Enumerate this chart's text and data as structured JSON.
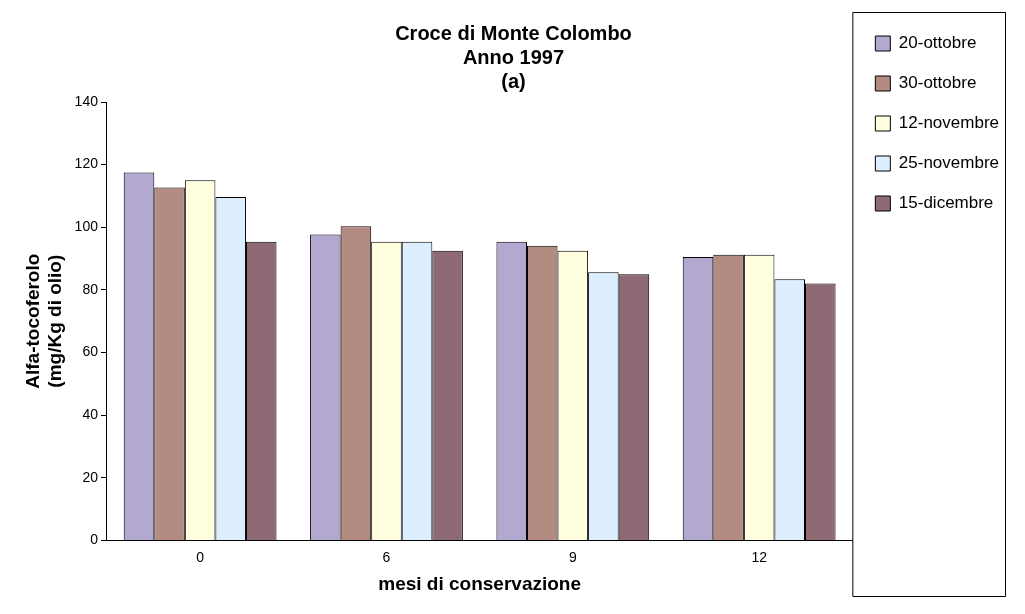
{
  "chart_data": {
    "type": "bar",
    "title": "Croce di Monte Colombo\nAnno 1997\n(a)",
    "xlabel": "mesi di conservazione",
    "ylabel": "Alfa-tocoferolo\n(mg/Kg di olio)",
    "categories": [
      "0",
      "6",
      "9",
      "12"
    ],
    "series": [
      {
        "name": "20-ottobre",
        "color": "#b3a8d0",
        "values": [
          117.5,
          97.7,
          95.4,
          90.5
        ]
      },
      {
        "name": "30-ottobre",
        "color": "#b38b80",
        "values": [
          112.7,
          100.3,
          94.1,
          91.2
        ]
      },
      {
        "name": "12-novembre",
        "color": "#ffffe0",
        "values": [
          115,
          95.4,
          92.5,
          91.2
        ]
      },
      {
        "name": "25-novembre",
        "color": "#ddeeff",
        "values": [
          109.7,
          95.4,
          85.6,
          83.4
        ]
      },
      {
        "name": "15-dicembre",
        "color": "#8e6a75",
        "values": [
          95.4,
          92.5,
          85,
          82
        ]
      }
    ],
    "ylim": [
      0,
      140
    ],
    "yticks": [
      0,
      20,
      40,
      60,
      80,
      100,
      120,
      140
    ],
    "grid": false,
    "legend": "top right"
  }
}
